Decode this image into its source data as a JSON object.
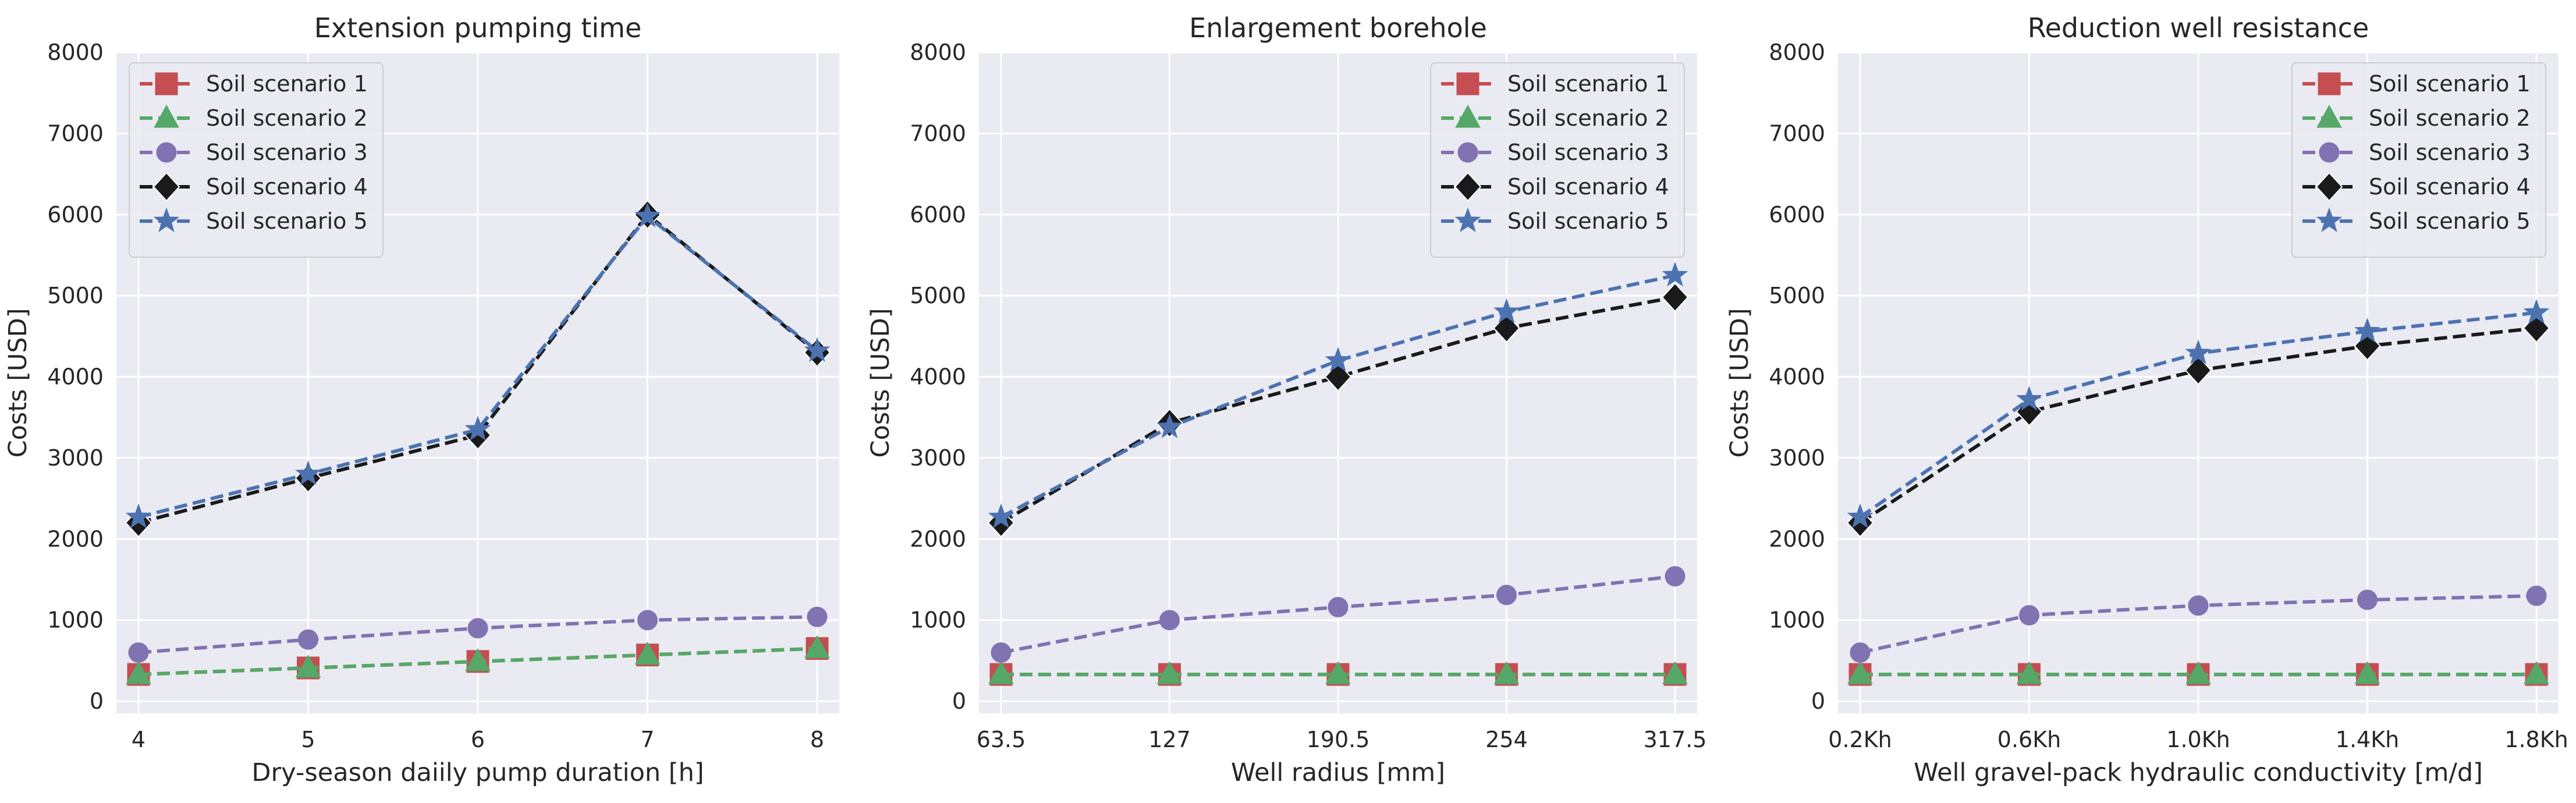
{
  "chart_data": [
    {
      "type": "line",
      "title": "Extension pumping time",
      "xlabel": "Dry-season daiily pump duration [h]",
      "ylabel": "Costs [USD]",
      "categories": [
        "4",
        "5",
        "6",
        "7",
        "8"
      ],
      "ylim": [
        -150,
        8000
      ],
      "yticks": [
        0,
        1000,
        2000,
        3000,
        4000,
        5000,
        6000,
        7000,
        8000
      ],
      "grid": true,
      "legend_position": "top-left",
      "series": [
        {
          "name": "Soil scenario 1",
          "color": "#c44e52",
          "marker": "square",
          "values": [
            330,
            410,
            490,
            570,
            650
          ]
        },
        {
          "name": "Soil scenario 2",
          "color": "#55a868",
          "marker": "triangle",
          "values": [
            330,
            410,
            490,
            570,
            650
          ]
        },
        {
          "name": "Soil scenario 3",
          "color": "#8172b2",
          "marker": "circle",
          "values": [
            600,
            760,
            900,
            1000,
            1040
          ]
        },
        {
          "name": "Soil scenario 4",
          "color": "#1a1a1a",
          "marker": "diamond",
          "values": [
            2200,
            2750,
            3280,
            6000,
            4300
          ]
        },
        {
          "name": "Soil scenario 5",
          "color": "#4c72b0",
          "marker": "star",
          "values": [
            2270,
            2800,
            3350,
            5980,
            4320
          ]
        }
      ]
    },
    {
      "type": "line",
      "title": "Enlargement borehole",
      "xlabel": "Well radius [mm]",
      "ylabel": "Costs [USD]",
      "categories": [
        "63.5",
        "127",
        "190.5",
        "254",
        "317.5"
      ],
      "ylim": [
        -150,
        8000
      ],
      "yticks": [
        0,
        1000,
        2000,
        3000,
        4000,
        5000,
        6000,
        7000,
        8000
      ],
      "grid": true,
      "legend_position": "top-right",
      "series": [
        {
          "name": "Soil scenario 1",
          "color": "#c44e52",
          "marker": "square",
          "values": [
            330,
            330,
            330,
            330,
            330
          ]
        },
        {
          "name": "Soil scenario 2",
          "color": "#55a868",
          "marker": "triangle",
          "values": [
            330,
            330,
            330,
            330,
            330
          ]
        },
        {
          "name": "Soil scenario 3",
          "color": "#8172b2",
          "marker": "circle",
          "values": [
            600,
            1000,
            1160,
            1310,
            1540
          ]
        },
        {
          "name": "Soil scenario 4",
          "color": "#1a1a1a",
          "marker": "diamond",
          "values": [
            2200,
            3430,
            4000,
            4600,
            4980
          ]
        },
        {
          "name": "Soil scenario 5",
          "color": "#4c72b0",
          "marker": "star",
          "values": [
            2270,
            3380,
            4200,
            4800,
            5250
          ]
        }
      ]
    },
    {
      "type": "line",
      "title": "Reduction well resistance",
      "xlabel": "Well gravel-pack hydraulic conductivity [m/d]",
      "ylabel": "Costs [USD]",
      "categories": [
        "0.2Kh",
        "0.6Kh",
        "1.0Kh",
        "1.4Kh",
        "1.8Kh"
      ],
      "ylim": [
        -150,
        8000
      ],
      "yticks": [
        0,
        1000,
        2000,
        3000,
        4000,
        5000,
        6000,
        7000,
        8000
      ],
      "grid": true,
      "legend_position": "top-right",
      "series": [
        {
          "name": "Soil scenario 1",
          "color": "#c44e52",
          "marker": "square",
          "values": [
            330,
            330,
            330,
            330,
            330
          ]
        },
        {
          "name": "Soil scenario 2",
          "color": "#55a868",
          "marker": "triangle",
          "values": [
            330,
            330,
            330,
            330,
            330
          ]
        },
        {
          "name": "Soil scenario 3",
          "color": "#8172b2",
          "marker": "circle",
          "values": [
            600,
            1060,
            1180,
            1250,
            1300
          ]
        },
        {
          "name": "Soil scenario 4",
          "color": "#1a1a1a",
          "marker": "diamond",
          "values": [
            2200,
            3570,
            4080,
            4380,
            4600
          ]
        },
        {
          "name": "Soil scenario 5",
          "color": "#4c72b0",
          "marker": "star",
          "values": [
            2270,
            3720,
            4290,
            4560,
            4790
          ]
        }
      ]
    }
  ]
}
